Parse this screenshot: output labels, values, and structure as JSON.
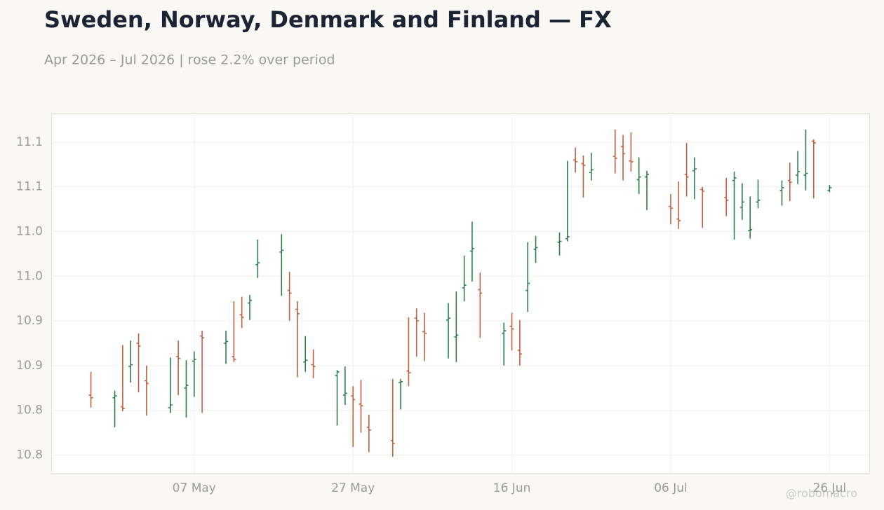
{
  "chart_data": {
    "type": "ohlc",
    "title": "Sweden, Norway, Denmark and Finland — FX",
    "subtitle": "Apr 2026 – Jul 2026 | rose 2.2% over period",
    "watermark": "@robomacro",
    "up_color": "#2e7d4f",
    "down_color": "#c0603f",
    "grid": true,
    "ylim": [
      10.73,
      11.132
    ],
    "yticks": [
      {
        "value": 10.75,
        "label": "10.8"
      },
      10.8,
      {
        "value": 10.85,
        "label": "10.9"
      },
      10.9,
      {
        "value": 10.95,
        "label": "11.0"
      },
      {
        "value": 11.0,
        "label": "11.0"
      },
      {
        "value": 11.05,
        "label": "11.1"
      },
      11.1
    ],
    "xlim": [
      "2026-04-19",
      "2026-07-31"
    ],
    "xticks": [
      {
        "value": "2026-05-07",
        "label": "07 May"
      },
      {
        "value": "2026-05-27",
        "label": "27 May"
      },
      {
        "value": "2026-06-16",
        "label": "16 Jun"
      },
      {
        "value": "2026-07-06",
        "label": "06 Jul"
      },
      {
        "value": "2026-07-26",
        "label": "26 Jul"
      }
    ],
    "x": [
      "2026-04-24",
      "2026-04-27",
      "2026-04-28",
      "2026-04-29",
      "2026-04-30",
      "2026-05-01",
      "2026-05-04",
      "2026-05-05",
      "2026-05-06",
      "2026-05-07",
      "2026-05-08",
      "2026-05-11",
      "2026-05-12",
      "2026-05-13",
      "2026-05-14",
      "2026-05-15",
      "2026-05-18",
      "2026-05-19",
      "2026-05-20",
      "2026-05-21",
      "2026-05-22",
      "2026-05-25",
      "2026-05-26",
      "2026-05-27",
      "2026-05-28",
      "2026-05-29",
      "2026-06-01",
      "2026-06-02",
      "2026-06-03",
      "2026-06-04",
      "2026-06-05",
      "2026-06-08",
      "2026-06-09",
      "2026-06-10",
      "2026-06-11",
      "2026-06-12",
      "2026-06-15",
      "2026-06-16",
      "2026-06-17",
      "2026-06-18",
      "2026-06-19",
      "2026-06-22",
      "2026-06-23",
      "2026-06-24",
      "2026-06-25",
      "2026-06-26",
      "2026-06-29",
      "2026-06-30",
      "2026-07-01",
      "2026-07-02",
      "2026-07-03",
      "2026-07-06",
      "2026-07-07",
      "2026-07-08",
      "2026-07-09",
      "2026-07-10",
      "2026-07-13",
      "2026-07-14",
      "2026-07-15",
      "2026-07-16",
      "2026-07-17",
      "2026-07-20",
      "2026-07-21",
      "2026-07-22",
      "2026-07-23",
      "2026-07-24",
      "2026-07-26"
    ],
    "open": [
      10.817,
      10.814,
      10.804,
      10.849,
      10.875,
      10.833,
      10.803,
      10.86,
      10.825,
      10.855,
      10.883,
      10.875,
      10.86,
      10.907,
      10.92,
      10.963,
      10.977,
      10.934,
      10.913,
      10.854,
      10.851,
      10.839,
      10.817,
      10.816,
      10.807,
      10.781,
      10.766,
      10.831,
      10.844,
      10.903,
      10.888,
      10.901,
      10.882,
      10.937,
      10.978,
      10.935,
      10.886,
      10.894,
      10.867,
      10.934,
      10.98,
      10.988,
      10.992,
      11.08,
      11.076,
      11.066,
      11.084,
      11.095,
      11.079,
      11.058,
      11.061,
      11.028,
      11.014,
      11.064,
      11.068,
      11.047,
      11.038,
      11.057,
      11.027,
      11.001,
      11.033,
      11.046,
      11.057,
      11.063,
      11.063,
      11.101,
      11.046
    ],
    "high": [
      10.843,
      10.822,
      10.873,
      10.878,
      10.886,
      10.85,
      10.859,
      10.878,
      10.856,
      10.866,
      10.889,
      10.889,
      10.922,
      10.927,
      10.929,
      10.991,
      10.997,
      10.955,
      10.922,
      10.883,
      10.868,
      10.845,
      10.849,
      10.827,
      10.834,
      10.795,
      10.835,
      10.835,
      10.904,
      10.914,
      10.909,
      10.92,
      10.933,
      10.973,
      11.011,
      10.954,
      10.898,
      10.909,
      10.901,
      10.988,
      10.995,
      10.999,
      11.079,
      11.094,
      11.085,
      11.088,
      11.114,
      11.108,
      11.111,
      11.083,
      11.068,
      11.042,
      11.056,
      11.099,
      11.083,
      11.05,
      11.06,
      11.067,
      11.054,
      11.039,
      11.058,
      11.057,
      11.077,
      11.09,
      11.114,
      11.103,
      11.052
    ],
    "low": [
      10.803,
      10.781,
      10.799,
      10.831,
      10.82,
      10.794,
      10.797,
      10.817,
      10.792,
      10.815,
      10.797,
      10.852,
      10.854,
      10.892,
      10.901,
      10.948,
      10.928,
      10.9,
      10.837,
      10.843,
      10.836,
      10.783,
      10.806,
      10.759,
      10.775,
      10.753,
      10.748,
      10.801,
      10.827,
      10.86,
      10.855,
      10.858,
      10.854,
      10.922,
      10.944,
      10.881,
      10.85,
      10.867,
      10.85,
      10.91,
      10.965,
      10.973,
      10.989,
      11.066,
      11.038,
      11.057,
      11.065,
      11.057,
      11.067,
      11.042,
      11.024,
      11.008,
      11.003,
      11.039,
      11.036,
      11.004,
      11.017,
      10.991,
      11.013,
      10.992,
      11.026,
      11.029,
      11.034,
      11.053,
      11.046,
      11.037,
      11.044
    ],
    "close": [
      10.814,
      10.816,
      10.802,
      10.851,
      10.872,
      10.83,
      10.806,
      10.858,
      10.828,
      10.857,
      10.881,
      10.877,
      10.857,
      10.904,
      10.923,
      10.965,
      10.979,
      10.931,
      10.908,
      10.856,
      10.849,
      10.843,
      10.819,
      10.812,
      10.805,
      10.778,
      10.763,
      10.832,
      10.842,
      10.9,
      10.886,
      10.903,
      10.884,
      10.94,
      10.981,
      10.931,
      10.889,
      10.891,
      10.863,
      10.942,
      10.982,
      10.989,
      10.994,
      11.078,
      11.074,
      11.069,
      11.082,
      11.087,
      11.078,
      11.061,
      11.064,
      11.026,
      11.012,
      11.061,
      11.07,
      11.045,
      11.035,
      11.06,
      11.033,
      11.002,
      11.035,
      11.049,
      11.055,
      11.067,
      11.065,
      11.099,
      11.049
    ]
  }
}
